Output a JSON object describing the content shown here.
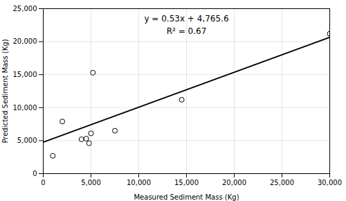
{
  "chart_data": {
    "type": "scatter",
    "xlabel": "Measured Sediment Mass (Kg)",
    "ylabel": "Predicted Sediment Mass (Kg)",
    "annotations": [
      "y = 0.53x + 4,765.6",
      "R² = 0.67"
    ],
    "series": [
      {
        "type": "scatter",
        "marker": "circle",
        "color": "#000000",
        "x": [
          1000,
          2000,
          4000,
          4500,
          4800,
          5000,
          5200,
          7500,
          14500,
          30000
        ],
        "values": [
          2700,
          7900,
          5200,
          5300,
          4600,
          6100,
          15300,
          6500,
          11200,
          21200
        ]
      },
      {
        "type": "line",
        "line_style": "solid",
        "color": "#000000",
        "x": [
          0,
          30000
        ],
        "values": [
          4765.6,
          20665.6
        ]
      }
    ],
    "xlim": [
      0,
      30000
    ],
    "ylim": [
      0,
      25000
    ],
    "xticks": [
      0,
      {
        "value": 5000,
        "label": "5,000"
      },
      {
        "value": 10000,
        "label": "10,000"
      },
      {
        "value": 15000,
        "label": "15,000"
      },
      {
        "value": 20000,
        "label": "20,000"
      },
      {
        "value": 25000,
        "label": "25,000"
      },
      {
        "value": 30000,
        "label": "30,000"
      }
    ],
    "yticks": [
      0,
      {
        "value": 5000,
        "label": "5,000"
      },
      {
        "value": 10000,
        "label": "10,000"
      },
      {
        "value": 15000,
        "label": "15,000"
      },
      {
        "value": 20000,
        "label": "20,000"
      },
      {
        "value": 25000,
        "label": "25,000"
      }
    ],
    "grid": true
  }
}
